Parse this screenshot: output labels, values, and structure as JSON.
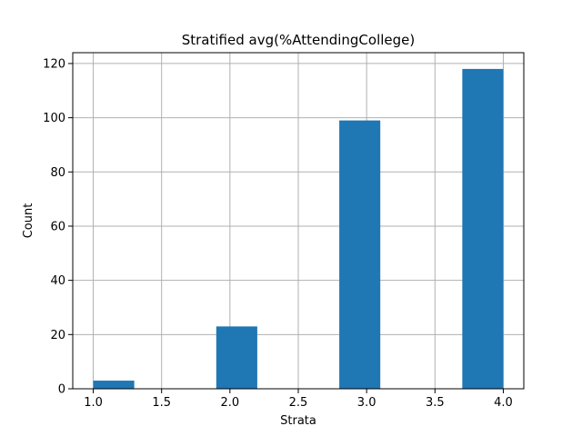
{
  "chart_data": {
    "type": "bar",
    "title": "Stratified avg(%AttendingCollege)",
    "xlabel": "Strata",
    "ylabel": "Count",
    "bins": [
      {
        "start": 1.0,
        "end": 1.3,
        "count": 3
      },
      {
        "start": 1.3,
        "end": 1.6,
        "count": 0
      },
      {
        "start": 1.6,
        "end": 1.9,
        "count": 0
      },
      {
        "start": 1.9,
        "end": 2.2,
        "count": 23
      },
      {
        "start": 2.2,
        "end": 2.5,
        "count": 0
      },
      {
        "start": 2.5,
        "end": 2.8,
        "count": 0
      },
      {
        "start": 2.8,
        "end": 3.1,
        "count": 99
      },
      {
        "start": 3.1,
        "end": 3.4,
        "count": 0
      },
      {
        "start": 3.4,
        "end": 3.7,
        "count": 0
      },
      {
        "start": 3.7,
        "end": 4.0,
        "count": 118
      }
    ],
    "xlim": [
      0.85,
      4.15
    ],
    "ylim": [
      0,
      124
    ],
    "xticks": [
      1.0,
      1.5,
      2.0,
      2.5,
      3.0,
      3.5,
      4.0
    ],
    "xtick_labels": [
      "1.0",
      "1.5",
      "2.0",
      "2.5",
      "3.0",
      "3.5",
      "4.0"
    ],
    "yticks": [
      0,
      20,
      40,
      60,
      80,
      100,
      120
    ],
    "ytick_labels": [
      "0",
      "20",
      "40",
      "60",
      "80",
      "100",
      "120"
    ],
    "grid": true,
    "bar_color": "#1f77b4",
    "grid_color": "#b0b0b0"
  }
}
